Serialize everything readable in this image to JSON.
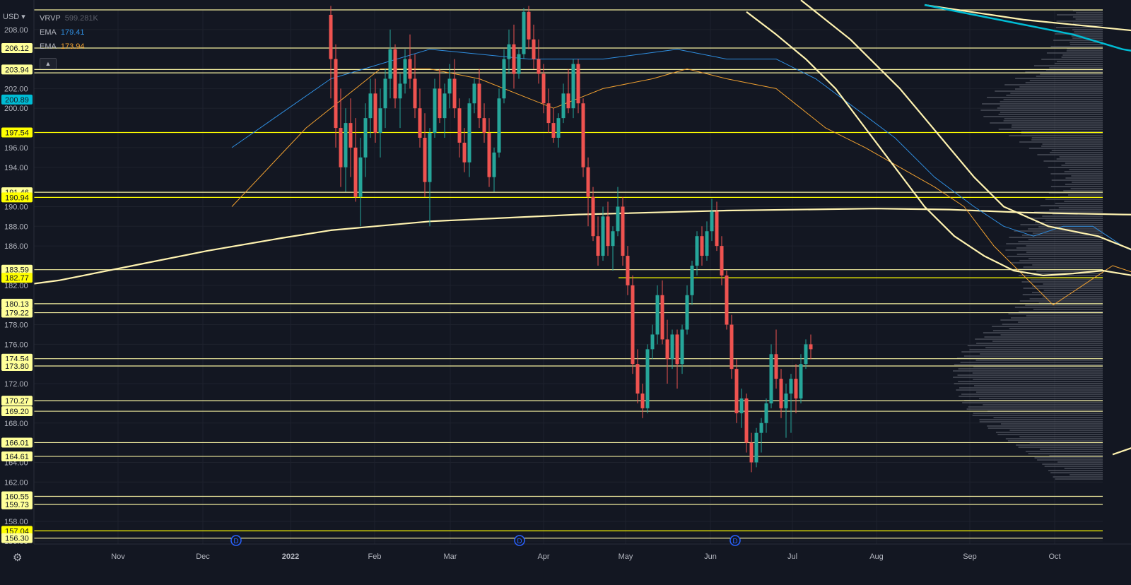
{
  "header": {
    "currency": "USD",
    "currency_chevron": "chevron-down-icon",
    "legend": [
      {
        "name": "VRVP",
        "value": "599.281K",
        "color": "#5d606b"
      },
      {
        "name": "EMA",
        "value": "179.41",
        "color": "#2f8ee0"
      },
      {
        "name": "EMA",
        "value": "173.94",
        "color": "#f0a030"
      }
    ],
    "collapse_icon": "chevron-up-icon",
    "settings_icon": "gear-icon"
  },
  "chart_data": {
    "type": "candlestick",
    "y_ticks": [
      "208.00",
      "202.00",
      "200.00",
      "196.00",
      "194.00",
      "190.00",
      "188.00",
      "186.00",
      "182.00",
      "178.00",
      "176.00",
      "172.00",
      "168.00",
      "166.00",
      "164.00",
      "162.00",
      "158.00",
      "156.00"
    ],
    "ylim": [
      155.3,
      210.4
    ],
    "x_ticks": [
      "Nov",
      "Dec",
      "2022",
      "Feb",
      "Mar",
      "Apr",
      "May",
      "Jun",
      "Jul",
      "Aug",
      "Sep",
      "Oct"
    ],
    "horizontal_levels": [
      {
        "price": 210.0,
        "label": ""
      },
      {
        "price": 206.12,
        "label": "206.12",
        "bg": "#ffff99"
      },
      {
        "price": 203.94,
        "label": "203.94",
        "bg": "#ffff99"
      },
      {
        "price": 203.6,
        "label": ""
      },
      {
        "price": 197.54,
        "label": "197.54",
        "bg": "#ffff00"
      },
      {
        "price": 191.46,
        "label": "191.46",
        "bg": "#ffff99"
      },
      {
        "price": 190.94,
        "label": "190.94",
        "bg": "#ffff00"
      },
      {
        "price": 183.59,
        "label": "183.59",
        "bg": "#ffff99"
      },
      {
        "price": 182.77,
        "label": "182.77",
        "bg": "#ffff00",
        "from_x": 875
      },
      {
        "price": 180.13,
        "label": "180.13",
        "bg": "#ffff99"
      },
      {
        "price": 179.22,
        "label": "179.22",
        "bg": "#ffff99"
      },
      {
        "price": 174.54,
        "label": "174.54",
        "bg": "#ffff99"
      },
      {
        "price": 173.8,
        "label": "173.80",
        "bg": "#ffff99"
      },
      {
        "price": 170.27,
        "label": "170.27",
        "bg": "#ffff99"
      },
      {
        "price": 169.2,
        "label": "169.20",
        "bg": "#ffff99"
      },
      {
        "price": 166.01,
        "label": "166.01",
        "bg": "#ffff99"
      },
      {
        "price": 164.61,
        "label": "164.61",
        "bg": "#ffff99"
      },
      {
        "price": 160.55,
        "label": "160.55",
        "bg": "#ffff99"
      },
      {
        "price": 159.73,
        "label": "159.73",
        "bg": "#ffff99"
      },
      {
        "price": 157.04,
        "label": "157.04",
        "bg": "#ffff00"
      },
      {
        "price": 156.3,
        "label": "156.30",
        "bg": "#ffff99"
      }
    ],
    "ema_badge": {
      "price": 200.89,
      "label": "200.89",
      "bg": "#00bcd4"
    },
    "dividend_markers": [
      "D",
      "D",
      "D"
    ],
    "candles": [
      {
        "o": 209.5,
        "h": 210.4,
        "l": 201.0,
        "c": 205.0
      },
      {
        "o": 205.0,
        "h": 206.5,
        "l": 196.0,
        "c": 198.0
      },
      {
        "o": 198.0,
        "h": 202.0,
        "l": 192.0,
        "c": 194.0
      },
      {
        "o": 194.0,
        "h": 200.0,
        "l": 191.5,
        "c": 198.5
      },
      {
        "o": 198.5,
        "h": 201.0,
        "l": 193.0,
        "c": 196.0
      },
      {
        "o": 196.0,
        "h": 199.0,
        "l": 190.5,
        "c": 191.0
      },
      {
        "o": 191.0,
        "h": 197.0,
        "l": 188.0,
        "c": 195.0
      },
      {
        "o": 195.0,
        "h": 200.5,
        "l": 193.0,
        "c": 199.0
      },
      {
        "o": 199.0,
        "h": 203.0,
        "l": 197.0,
        "c": 201.5
      },
      {
        "o": 201.5,
        "h": 203.0,
        "l": 196.5,
        "c": 197.5
      },
      {
        "o": 197.5,
        "h": 202.0,
        "l": 195.0,
        "c": 200.0
      },
      {
        "o": 200.0,
        "h": 204.0,
        "l": 198.0,
        "c": 203.0
      },
      {
        "o": 203.0,
        "h": 208.0,
        "l": 201.0,
        "c": 206.0
      },
      {
        "o": 206.0,
        "h": 206.5,
        "l": 200.0,
        "c": 201.0
      },
      {
        "o": 201.0,
        "h": 203.5,
        "l": 198.0,
        "c": 202.5
      },
      {
        "o": 202.5,
        "h": 206.0,
        "l": 201.5,
        "c": 205.0
      },
      {
        "o": 205.0,
        "h": 207.5,
        "l": 202.0,
        "c": 203.0
      },
      {
        "o": 203.0,
        "h": 205.5,
        "l": 199.0,
        "c": 200.0
      },
      {
        "o": 200.0,
        "h": 202.0,
        "l": 196.0,
        "c": 197.0
      },
      {
        "o": 197.0,
        "h": 199.5,
        "l": 191.0,
        "c": 192.5
      },
      {
        "o": 192.5,
        "h": 198.0,
        "l": 188.0,
        "c": 197.5
      },
      {
        "o": 197.5,
        "h": 203.0,
        "l": 197.0,
        "c": 202.0
      },
      {
        "o": 202.0,
        "h": 204.0,
        "l": 198.5,
        "c": 199.0
      },
      {
        "o": 199.0,
        "h": 202.5,
        "l": 197.0,
        "c": 201.5
      },
      {
        "o": 201.5,
        "h": 204.5,
        "l": 200.0,
        "c": 203.0
      },
      {
        "o": 203.0,
        "h": 205.0,
        "l": 199.0,
        "c": 200.0
      },
      {
        "o": 200.0,
        "h": 201.0,
        "l": 195.0,
        "c": 196.5
      },
      {
        "o": 196.5,
        "h": 198.0,
        "l": 193.5,
        "c": 194.5
      },
      {
        "o": 194.5,
        "h": 201.0,
        "l": 193.0,
        "c": 200.5
      },
      {
        "o": 200.5,
        "h": 203.0,
        "l": 199.5,
        "c": 202.5
      },
      {
        "o": 202.5,
        "h": 204.0,
        "l": 198.0,
        "c": 199.0
      },
      {
        "o": 199.0,
        "h": 200.5,
        "l": 196.5,
        "c": 197.5
      },
      {
        "o": 197.5,
        "h": 199.0,
        "l": 192.0,
        "c": 193.0
      },
      {
        "o": 193.0,
        "h": 196.0,
        "l": 191.5,
        "c": 195.5
      },
      {
        "o": 195.5,
        "h": 202.0,
        "l": 195.0,
        "c": 201.0
      },
      {
        "o": 201.0,
        "h": 206.0,
        "l": 200.5,
        "c": 205.0
      },
      {
        "o": 205.0,
        "h": 208.0,
        "l": 203.5,
        "c": 206.5
      },
      {
        "o": 206.5,
        "h": 208.5,
        "l": 202.0,
        "c": 203.5
      },
      {
        "o": 203.5,
        "h": 206.0,
        "l": 203.0,
        "c": 205.5
      },
      {
        "o": 205.5,
        "h": 210.2,
        "l": 205.0,
        "c": 209.8
      },
      {
        "o": 209.8,
        "h": 210.4,
        "l": 206.0,
        "c": 207.0
      },
      {
        "o": 207.0,
        "h": 208.5,
        "l": 204.0,
        "c": 205.0
      },
      {
        "o": 205.0,
        "h": 207.0,
        "l": 202.5,
        "c": 203.5
      },
      {
        "o": 203.5,
        "h": 204.5,
        "l": 199.5,
        "c": 200.5
      },
      {
        "o": 200.5,
        "h": 202.0,
        "l": 197.5,
        "c": 198.5
      },
      {
        "o": 198.5,
        "h": 200.0,
        "l": 196.5,
        "c": 197.0
      },
      {
        "o": 197.0,
        "h": 199.5,
        "l": 196.0,
        "c": 199.0
      },
      {
        "o": 199.0,
        "h": 202.5,
        "l": 198.5,
        "c": 201.5
      },
      {
        "o": 201.5,
        "h": 204.0,
        "l": 199.5,
        "c": 200.0
      },
      {
        "o": 200.0,
        "h": 205.0,
        "l": 199.0,
        "c": 204.5
      },
      {
        "o": 204.5,
        "h": 205.0,
        "l": 199.5,
        "c": 200.5
      },
      {
        "o": 200.5,
        "h": 201.0,
        "l": 193.0,
        "c": 194.0
      },
      {
        "o": 194.0,
        "h": 195.0,
        "l": 188.0,
        "c": 191.0
      },
      {
        "o": 191.0,
        "h": 192.0,
        "l": 186.5,
        "c": 187.0
      },
      {
        "o": 187.0,
        "h": 189.0,
        "l": 184.0,
        "c": 185.0
      },
      {
        "o": 185.0,
        "h": 190.0,
        "l": 184.5,
        "c": 189.0
      },
      {
        "o": 189.0,
        "h": 190.5,
        "l": 185.0,
        "c": 186.0
      },
      {
        "o": 186.0,
        "h": 188.0,
        "l": 183.5,
        "c": 187.5
      },
      {
        "o": 187.5,
        "h": 192.0,
        "l": 187.0,
        "c": 190.0
      },
      {
        "o": 190.0,
        "h": 191.0,
        "l": 184.0,
        "c": 185.0
      },
      {
        "o": 185.0,
        "h": 186.0,
        "l": 181.0,
        "c": 182.0
      },
      {
        "o": 182.0,
        "h": 183.0,
        "l": 173.0,
        "c": 174.0
      },
      {
        "o": 174.0,
        "h": 175.5,
        "l": 170.0,
        "c": 171.0
      },
      {
        "o": 171.0,
        "h": 172.0,
        "l": 168.5,
        "c": 169.5
      },
      {
        "o": 169.5,
        "h": 176.0,
        "l": 169.0,
        "c": 175.5
      },
      {
        "o": 175.5,
        "h": 178.0,
        "l": 174.5,
        "c": 177.0
      },
      {
        "o": 177.0,
        "h": 182.0,
        "l": 176.0,
        "c": 181.0
      },
      {
        "o": 181.0,
        "h": 182.5,
        "l": 176.0,
        "c": 176.5
      },
      {
        "o": 176.5,
        "h": 178.5,
        "l": 172.0,
        "c": 174.5
      },
      {
        "o": 174.5,
        "h": 177.5,
        "l": 173.5,
        "c": 177.0
      },
      {
        "o": 177.0,
        "h": 177.5,
        "l": 171.5,
        "c": 174.0
      },
      {
        "o": 174.0,
        "h": 178.0,
        "l": 173.0,
        "c": 177.5
      },
      {
        "o": 177.5,
        "h": 182.0,
        "l": 177.0,
        "c": 181.0
      },
      {
        "o": 181.0,
        "h": 184.5,
        "l": 180.0,
        "c": 184.0
      },
      {
        "o": 184.0,
        "h": 187.5,
        "l": 183.0,
        "c": 187.0
      },
      {
        "o": 187.0,
        "h": 188.0,
        "l": 184.0,
        "c": 185.0
      },
      {
        "o": 185.0,
        "h": 188.5,
        "l": 184.5,
        "c": 187.5
      },
      {
        "o": 187.5,
        "h": 190.8,
        "l": 186.5,
        "c": 189.5
      },
      {
        "o": 189.5,
        "h": 190.5,
        "l": 185.5,
        "c": 186.0
      },
      {
        "o": 186.0,
        "h": 187.0,
        "l": 182.0,
        "c": 183.0
      },
      {
        "o": 183.0,
        "h": 183.5,
        "l": 177.5,
        "c": 178.0
      },
      {
        "o": 178.0,
        "h": 179.0,
        "l": 172.5,
        "c": 173.5
      },
      {
        "o": 173.5,
        "h": 174.5,
        "l": 168.0,
        "c": 169.0
      },
      {
        "o": 169.0,
        "h": 171.5,
        "l": 167.5,
        "c": 170.5
      },
      {
        "o": 170.5,
        "h": 171.0,
        "l": 165.0,
        "c": 166.0
      },
      {
        "o": 166.0,
        "h": 167.0,
        "l": 163.0,
        "c": 164.0
      },
      {
        "o": 164.0,
        "h": 167.5,
        "l": 163.5,
        "c": 167.0
      },
      {
        "o": 167.0,
        "h": 168.5,
        "l": 165.0,
        "c": 168.0
      },
      {
        "o": 168.0,
        "h": 170.5,
        "l": 167.0,
        "c": 170.0
      },
      {
        "o": 170.0,
        "h": 176.0,
        "l": 169.5,
        "c": 175.0
      },
      {
        "o": 175.0,
        "h": 177.5,
        "l": 171.5,
        "c": 172.5
      },
      {
        "o": 172.5,
        "h": 173.5,
        "l": 168.5,
        "c": 169.5
      },
      {
        "o": 169.5,
        "h": 172.0,
        "l": 166.5,
        "c": 171.0
      },
      {
        "o": 171.0,
        "h": 173.0,
        "l": 167.0,
        "c": 172.5
      },
      {
        "o": 172.5,
        "h": 174.0,
        "l": 169.0,
        "c": 170.5
      },
      {
        "o": 170.5,
        "h": 175.0,
        "l": 170.0,
        "c": 174.0
      },
      {
        "o": 174.0,
        "h": 176.5,
        "l": 173.5,
        "c": 176.0
      },
      {
        "o": 176.0,
        "h": 177.0,
        "l": 174.5,
        "c": 175.5
      }
    ],
    "ema_20": [
      [
        -20,
        190
      ],
      [
        -5,
        198
      ],
      [
        10,
        204
      ],
      [
        20,
        204
      ],
      [
        30,
        203
      ],
      [
        40,
        201
      ],
      [
        45,
        200
      ],
      [
        55,
        202
      ],
      [
        65,
        203
      ],
      [
        72,
        204
      ],
      [
        80,
        203
      ],
      [
        90,
        202
      ],
      [
        95,
        200
      ],
      [
        100,
        198
      ],
      [
        108,
        196
      ],
      [
        115,
        194
      ],
      [
        122,
        192
      ],
      [
        128,
        190
      ],
      [
        134,
        186
      ],
      [
        140,
        183
      ],
      [
        146,
        180
      ],
      [
        152,
        182
      ],
      [
        158,
        184
      ],
      [
        164,
        183
      ],
      [
        170,
        180
      ],
      [
        176,
        176
      ],
      [
        182,
        174.5
      ],
      [
        188,
        173.94
      ]
    ],
    "ema_50": [
      [
        -20,
        196
      ],
      [
        0,
        203
      ],
      [
        20,
        206
      ],
      [
        40,
        205
      ],
      [
        55,
        205
      ],
      [
        70,
        206
      ],
      [
        80,
        205
      ],
      [
        90,
        205
      ],
      [
        98,
        203
      ],
      [
        106,
        200
      ],
      [
        114,
        197
      ],
      [
        122,
        193
      ],
      [
        130,
        190
      ],
      [
        136,
        188
      ],
      [
        142,
        187
      ],
      [
        148,
        188
      ],
      [
        154,
        188
      ],
      [
        160,
        186
      ],
      [
        168,
        184
      ],
      [
        176,
        182
      ],
      [
        182,
        180
      ],
      [
        188,
        179.41
      ]
    ],
    "sma_20": [
      [
        84,
        209.8
      ],
      [
        90,
        207.5
      ],
      [
        96,
        205
      ],
      [
        102,
        202
      ],
      [
        108,
        198
      ],
      [
        114,
        194
      ],
      [
        120,
        190
      ],
      [
        126,
        187
      ],
      [
        132,
        185
      ],
      [
        138,
        183.5
      ],
      [
        144,
        183
      ],
      [
        150,
        183.2
      ],
      [
        156,
        183.5
      ],
      [
        162,
        183
      ],
      [
        166,
        181.5
      ],
      [
        172,
        180
      ],
      [
        180,
        179.6
      ],
      [
        188,
        179.2
      ]
    ],
    "sma_50": [
      [
        95,
        211
      ],
      [
        105,
        207
      ],
      [
        115,
        202
      ],
      [
        120,
        199
      ],
      [
        125,
        196
      ],
      [
        130,
        193
      ],
      [
        136,
        190
      ],
      [
        145,
        188
      ],
      [
        155,
        187
      ],
      [
        165,
        185
      ],
      [
        175,
        184
      ],
      [
        188,
        183.6
      ]
    ],
    "sma_10": [
      [
        158,
        164.8
      ],
      [
        162,
        165.5
      ],
      [
        166,
        167.5
      ],
      [
        170,
        169
      ],
      [
        176,
        169.3
      ],
      [
        182,
        170
      ],
      [
        186,
        170.4
      ]
    ],
    "sma_200": [
      [
        -70,
        181.5
      ],
      [
        -55,
        182.5
      ],
      [
        -40,
        184
      ],
      [
        -25,
        185.5
      ],
      [
        -10,
        186.8
      ],
      [
        0,
        187.6
      ],
      [
        20,
        188.5
      ],
      [
        50,
        189.2
      ],
      [
        80,
        189.6
      ],
      [
        110,
        189.8
      ],
      [
        125,
        189.7
      ],
      [
        140,
        189.4
      ],
      [
        160,
        189.2
      ],
      [
        188,
        189.0
      ]
    ],
    "teal_line": [
      [
        120,
        210.5
      ],
      [
        135,
        209
      ],
      [
        150,
        207.5
      ],
      [
        160,
        206
      ],
      [
        172,
        205
      ],
      [
        180,
        204
      ],
      [
        188,
        203.3
      ],
      [
        196,
        202
      ],
      [
        210,
        200.9
      ]
    ],
    "upper_yellow_line": [
      [
        120,
        210.5
      ],
      [
        140,
        209
      ],
      [
        160,
        208
      ],
      [
        180,
        207
      ],
      [
        200,
        206.5
      ],
      [
        220,
        206.1
      ]
    ]
  }
}
